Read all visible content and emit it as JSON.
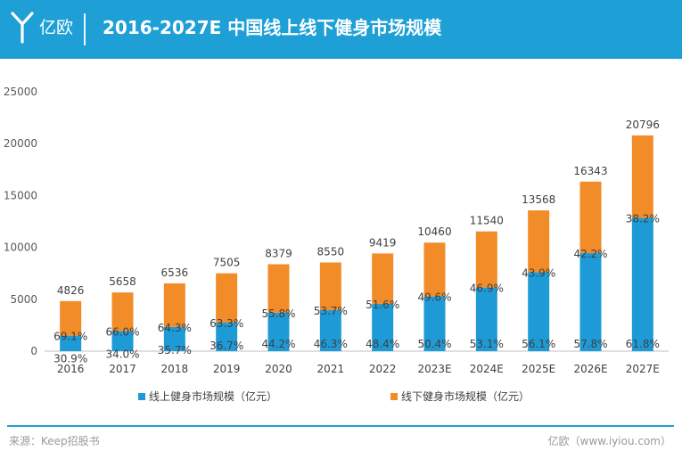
{
  "header": {
    "brand": "亿欧",
    "title": "2016-2027E 中国线上线下健身市场规模"
  },
  "footer": {
    "source": "来源：Keep招股书",
    "site": "亿欧（www.iyiou.com）"
  },
  "colors": {
    "header_bg": "#1ea0d6",
    "online": "#1e9bd7",
    "offline": "#f28c28"
  },
  "chart_data": {
    "type": "bar",
    "stacked": true,
    "title": "2016-2027E 中国线上线下健身市场规模",
    "categories": [
      "2016",
      "2017",
      "2018",
      "2019",
      "2020",
      "2021",
      "2022",
      "2023E",
      "2024E",
      "2025E",
      "2026E",
      "2027E"
    ],
    "totals": [
      "4826",
      "5658",
      "6536",
      "7505",
      "8379",
      "8550",
      "9419",
      "10460",
      "11540",
      "13568",
      "16343",
      "20796"
    ],
    "series": [
      {
        "name": "线上健身市场规模（亿元）",
        "share_labels": [
          "30.9%",
          "34.0%",
          "35.7%",
          "36.7%",
          "44.2%",
          "46.3%",
          "48.4%",
          "50.4%",
          "53.1%",
          "56.1%",
          "57.8%",
          "61.8%"
        ]
      },
      {
        "name": "线下健身市场规模（亿元）",
        "share_labels": [
          "69.1%",
          "66.0%",
          "64.3%",
          "63.3%",
          "55.8%",
          "53.7%",
          "51.6%",
          "49.6%",
          "46.9%",
          "43.9%",
          "42.2%",
          "38.2%"
        ]
      }
    ],
    "y_ticks": [
      "0",
      "5000",
      "10000",
      "15000",
      "20000",
      "25000"
    ],
    "ylim": [
      0,
      25000
    ],
    "legend": "bottom",
    "grid": false
  }
}
